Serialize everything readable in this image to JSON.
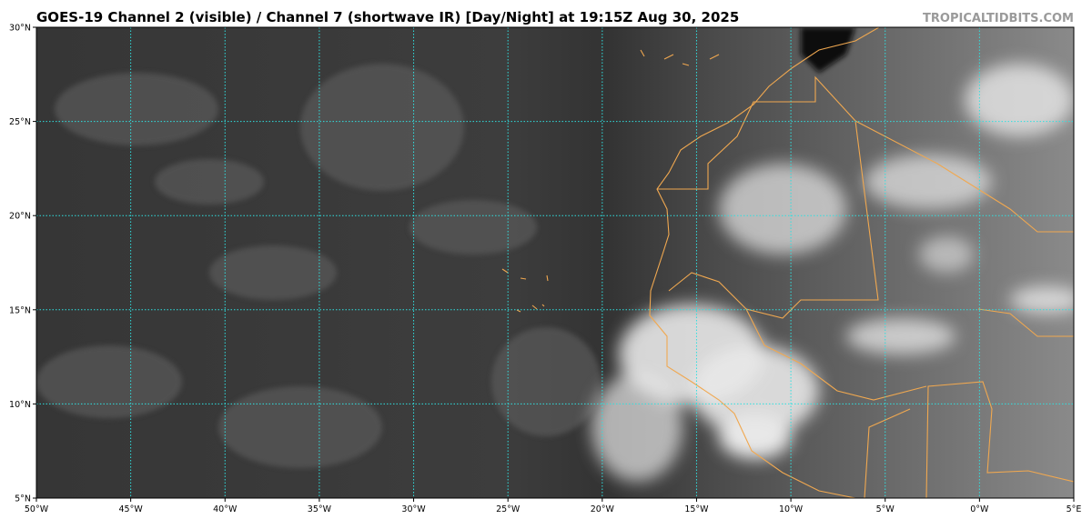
{
  "header": {
    "title": "GOES-19 Channel 2 (visible) / Channel 7 (shortwave IR) [Day/Night] at 19:15Z Aug 30, 2025",
    "watermark": "TROPICALTIDBITS.COM"
  },
  "map": {
    "latitude_labels": [
      "30°N",
      "25°N",
      "20°N",
      "15°N",
      "10°N",
      "5°N"
    ],
    "longitude_labels": [
      "50°W",
      "45°W",
      "40°W",
      "35°W",
      "30°W",
      "25°W",
      "20°W",
      "15°W",
      "10°W",
      "5°W",
      "0°W",
      "5°E"
    ]
  }
}
